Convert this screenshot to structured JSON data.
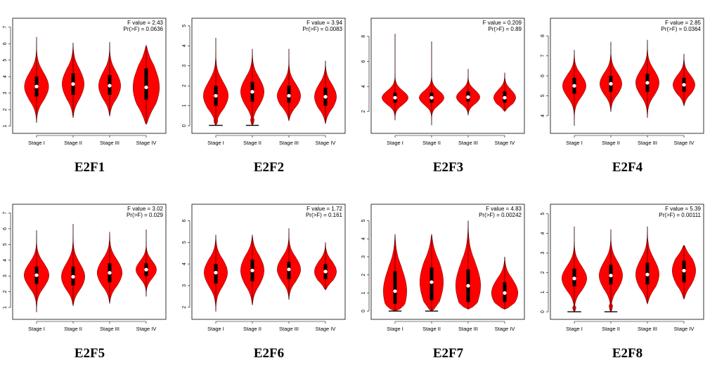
{
  "colors": {
    "violin_fill": "#ff0000",
    "violin_stroke": "#8b0000",
    "box": "#000000",
    "median": "#ffffff",
    "frame": "#000000"
  },
  "chart_data": [
    {
      "type": "violin",
      "title": "E2F1",
      "stats": {
        "f_label": "F value = 2.43",
        "p_label": "Pr(>F) = 0.0636"
      },
      "categories": [
        "Stage I",
        "Stage II",
        "Stage III",
        "Stage IV"
      ],
      "yticks": [
        1,
        2,
        3,
        4,
        5,
        6,
        7
      ],
      "ylim": [
        0.9,
        7.2
      ],
      "groups": [
        {
          "min": 1.2,
          "q1": 2.8,
          "median": 3.4,
          "q3": 4.0,
          "max": 6.4,
          "width": 0.33
        },
        {
          "min": 1.5,
          "q1": 2.9,
          "median": 3.55,
          "q3": 4.2,
          "max": 6.05,
          "width": 0.3
        },
        {
          "min": 1.6,
          "q1": 2.9,
          "median": 3.45,
          "q3": 4.1,
          "max": 6.1,
          "width": 0.3
        },
        {
          "min": 1.1,
          "q1": 2.6,
          "median": 3.35,
          "q3": 4.5,
          "max": 5.9,
          "width": 0.36
        }
      ]
    },
    {
      "type": "violin",
      "title": "E2F2",
      "stats": {
        "f_label": "F value = 3.94",
        "p_label": "Pr(>F) = 0.0083"
      },
      "categories": [
        "Stage I",
        "Stage II",
        "Stage III",
        "Stage IV"
      ],
      "yticks": [
        0,
        1,
        2,
        3,
        4,
        5
      ],
      "ylim": [
        -0.1,
        5.1
      ],
      "groups": [
        {
          "min": 0.02,
          "q1": 1.0,
          "median": 1.5,
          "q3": 2.0,
          "max": 4.4,
          "width": 0.34,
          "floor": 0.3
        },
        {
          "min": 0.02,
          "q1": 1.2,
          "median": 1.7,
          "q3": 2.2,
          "max": 3.85,
          "width": 0.32,
          "floor": 0.3
        },
        {
          "min": 0.25,
          "q1": 1.15,
          "median": 1.5,
          "q3": 2.0,
          "max": 3.85,
          "width": 0.32
        },
        {
          "min": 0.1,
          "q1": 1.0,
          "median": 1.45,
          "q3": 1.9,
          "max": 3.25,
          "width": 0.3
        }
      ]
    },
    {
      "type": "violin",
      "title": "E2F3",
      "stats": {
        "f_label": "F value = 0.209",
        "p_label": "Pr(>F) = 0.89"
      },
      "categories": [
        "Stage I",
        "Stage II",
        "Stage III",
        "Stage IV"
      ],
      "yticks": [
        2,
        4,
        6,
        8
      ],
      "ylim": [
        0.7,
        9.0
      ],
      "groups": [
        {
          "min": 1.3,
          "q1": 2.7,
          "median": 3.1,
          "q3": 3.5,
          "max": 8.2,
          "width": 0.36
        },
        {
          "min": 0.9,
          "q1": 2.7,
          "median": 3.1,
          "q3": 3.5,
          "max": 7.6,
          "width": 0.34
        },
        {
          "min": 1.7,
          "q1": 2.8,
          "median": 3.15,
          "q3": 3.6,
          "max": 5.4,
          "width": 0.32
        },
        {
          "min": 2.0,
          "q1": 2.7,
          "median": 3.1,
          "q3": 3.6,
          "max": 5.1,
          "width": 0.3
        }
      ]
    },
    {
      "type": "violin",
      "title": "E2F4",
      "stats": {
        "f_label": "F value = 2.85",
        "p_label": "Pr(>F) = 0.0364"
      },
      "categories": [
        "Stage I",
        "Stage II",
        "Stage III",
        "Stage IV"
      ],
      "yticks": [
        4,
        5,
        6,
        7,
        8
      ],
      "ylim": [
        3.4,
        8.6
      ],
      "groups": [
        {
          "min": 3.5,
          "q1": 5.1,
          "median": 5.5,
          "q3": 5.9,
          "max": 7.3,
          "width": 0.32
        },
        {
          "min": 4.2,
          "q1": 5.2,
          "median": 5.6,
          "q3": 6.0,
          "max": 7.7,
          "width": 0.3
        },
        {
          "min": 3.9,
          "q1": 5.2,
          "median": 5.65,
          "q3": 6.1,
          "max": 7.8,
          "width": 0.32
        },
        {
          "min": 4.5,
          "q1": 5.2,
          "median": 5.55,
          "q3": 5.9,
          "max": 7.1,
          "width": 0.3
        }
      ]
    },
    {
      "type": "violin",
      "title": "E2F5",
      "stats": {
        "f_label": "F value = 3.02",
        "p_label": "Pr(>F) = 0.029"
      },
      "categories": [
        "Stage I",
        "Stage II",
        "Stage III",
        "Stage IV"
      ],
      "yticks": [
        1,
        2,
        3,
        4,
        5,
        6,
        7
      ],
      "ylim": [
        0.6,
        7.2
      ],
      "groups": [
        {
          "min": 0.7,
          "q1": 2.5,
          "median": 3.05,
          "q3": 3.6,
          "max": 5.9,
          "width": 0.34
        },
        {
          "min": 1.1,
          "q1": 2.4,
          "median": 2.95,
          "q3": 3.6,
          "max": 6.3,
          "width": 0.32
        },
        {
          "min": 1.25,
          "q1": 2.6,
          "median": 3.2,
          "q3": 3.8,
          "max": 5.8,
          "width": 0.34
        },
        {
          "min": 1.7,
          "q1": 3.0,
          "median": 3.4,
          "q3": 3.8,
          "max": 5.95,
          "width": 0.28
        }
      ]
    },
    {
      "type": "violin",
      "title": "E2F6",
      "stats": {
        "f_label": "F value = 1.72",
        "p_label": "Pr(>F) = 0.161"
      },
      "categories": [
        "Stage I",
        "Stage II",
        "Stage III",
        "Stage IV"
      ],
      "yticks": [
        2,
        3,
        4,
        5,
        6
      ],
      "ylim": [
        1.7,
        6.5
      ],
      "groups": [
        {
          "min": 1.8,
          "q1": 3.1,
          "median": 3.6,
          "q3": 4.0,
          "max": 5.35,
          "width": 0.32
        },
        {
          "min": 2.1,
          "q1": 3.2,
          "median": 3.7,
          "q3": 4.2,
          "max": 5.35,
          "width": 0.32
        },
        {
          "min": 2.35,
          "q1": 3.3,
          "median": 3.75,
          "q3": 4.1,
          "max": 5.65,
          "width": 0.32
        },
        {
          "min": 2.8,
          "q1": 3.3,
          "median": 3.65,
          "q3": 4.0,
          "max": 5.0,
          "width": 0.3
        }
      ]
    },
    {
      "type": "violin",
      "title": "E2F7",
      "stats": {
        "f_label": "F value = 4.83",
        "p_label": "Pr(>F) = 0.00242"
      },
      "categories": [
        "Stage I",
        "Stage II",
        "Stage III",
        "Stage IV"
      ],
      "yticks": [
        0,
        1,
        2,
        3,
        4,
        5
      ],
      "ylim": [
        -0.15,
        5.6
      ],
      "groups": [
        {
          "min": 0.0,
          "q1": 0.4,
          "median": 1.1,
          "q3": 2.2,
          "max": 4.25,
          "width": 0.32,
          "floor": 0.28
        },
        {
          "min": 0.0,
          "q1": 0.6,
          "median": 1.6,
          "q3": 2.4,
          "max": 4.25,
          "width": 0.32,
          "floor": 0.28
        },
        {
          "min": 0.1,
          "q1": 0.5,
          "median": 1.4,
          "q3": 2.3,
          "max": 5.0,
          "width": 0.34
        },
        {
          "min": 0.1,
          "q1": 0.5,
          "median": 1.0,
          "q3": 1.6,
          "max": 3.0,
          "width": 0.36
        }
      ]
    },
    {
      "type": "violin",
      "title": "E2F8",
      "stats": {
        "f_label": "F value = 5.39",
        "p_label": "Pr(>F) = 0.00111"
      },
      "categories": [
        "Stage I",
        "Stage II",
        "Stage III",
        "Stage IV"
      ],
      "yticks": [
        0,
        1,
        2,
        3,
        4,
        5
      ],
      "ylim": [
        -0.1,
        5.2
      ],
      "groups": [
        {
          "min": 0.0,
          "q1": 1.3,
          "median": 1.7,
          "q3": 2.2,
          "max": 4.35,
          "width": 0.34,
          "floor": 0.3
        },
        {
          "min": 0.0,
          "q1": 1.4,
          "median": 1.85,
          "q3": 2.4,
          "max": 4.2,
          "width": 0.32,
          "floor": 0.3
        },
        {
          "min": 0.4,
          "q1": 1.4,
          "median": 1.9,
          "q3": 2.5,
          "max": 4.35,
          "width": 0.32
        },
        {
          "min": 0.65,
          "q1": 1.5,
          "median": 2.1,
          "q3": 2.6,
          "max": 3.4,
          "width": 0.32
        }
      ]
    }
  ]
}
